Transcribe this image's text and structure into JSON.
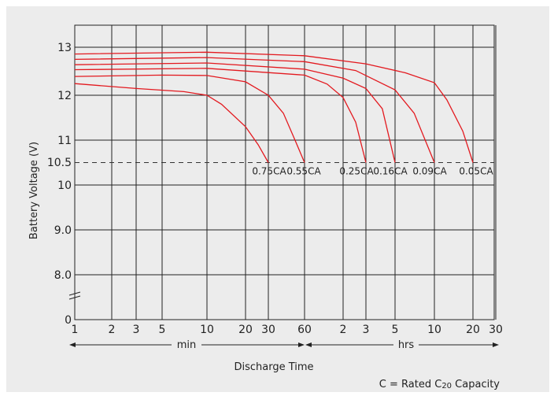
{
  "chart_data": {
    "type": "line",
    "ylabel": "Battery Voltage (V)",
    "xlabel": "Discharge Time",
    "note": "C = Rated C20 Capacity",
    "note_parts": {
      "prefix": "C = Rated C",
      "sub": "20",
      "suffix": " Capacity"
    },
    "y_ticks": [
      "13",
      "12",
      "11",
      "10.5",
      "10",
      "9.0",
      "8.0",
      "0"
    ],
    "x_ticks": [
      "1",
      "2",
      "3",
      "5",
      "10",
      "20",
      "30",
      "60",
      "2",
      "3",
      "5",
      "10",
      "20",
      "30"
    ],
    "x_unit_labels": {
      "min": "min",
      "hrs": "hrs"
    },
    "cutoff_voltage": 10.5,
    "x_scale": "log (minutes)",
    "colors": {
      "curves": "#e3191f",
      "grid": "#222222",
      "background": "#ececec"
    },
    "series": [
      {
        "name": "0.75CA",
        "points": [
          [
            1,
            12.26
          ],
          [
            3,
            12.15
          ],
          [
            7,
            12.08
          ],
          [
            10,
            12.0
          ],
          [
            13,
            11.8
          ],
          [
            20,
            11.3
          ],
          [
            25,
            10.9
          ],
          [
            30,
            10.5
          ]
        ]
      },
      {
        "name": "0.55CA",
        "points": [
          [
            1,
            12.42
          ],
          [
            5,
            12.45
          ],
          [
            10,
            12.44
          ],
          [
            20,
            12.3
          ],
          [
            30,
            12.0
          ],
          [
            40,
            11.6
          ],
          [
            50,
            11.0
          ],
          [
            60,
            10.5
          ]
        ]
      },
      {
        "name": "0.25CA",
        "points": [
          [
            1,
            12.57
          ],
          [
            10,
            12.6
          ],
          [
            60,
            12.45
          ],
          [
            90,
            12.25
          ],
          [
            120,
            11.95
          ],
          [
            150,
            11.4
          ],
          [
            180,
            10.5
          ]
        ]
      },
      {
        "name": "0.16CA",
        "points": [
          [
            1,
            12.68
          ],
          [
            10,
            12.72
          ],
          [
            60,
            12.58
          ],
          [
            120,
            12.38
          ],
          [
            180,
            12.15
          ],
          [
            240,
            11.7
          ],
          [
            300,
            10.5
          ]
        ]
      },
      {
        "name": "0.09CA",
        "points": [
          [
            1,
            12.8
          ],
          [
            10,
            12.84
          ],
          [
            60,
            12.75
          ],
          [
            150,
            12.55
          ],
          [
            300,
            12.12
          ],
          [
            420,
            11.6
          ],
          [
            600,
            10.5
          ]
        ]
      },
      {
        "name": "0.05CA",
        "points": [
          [
            1,
            12.92
          ],
          [
            10,
            12.96
          ],
          [
            60,
            12.88
          ],
          [
            180,
            12.7
          ],
          [
            360,
            12.5
          ],
          [
            600,
            12.28
          ],
          [
            750,
            11.9
          ],
          [
            1000,
            11.2
          ],
          [
            1200,
            10.5
          ]
        ]
      }
    ]
  }
}
